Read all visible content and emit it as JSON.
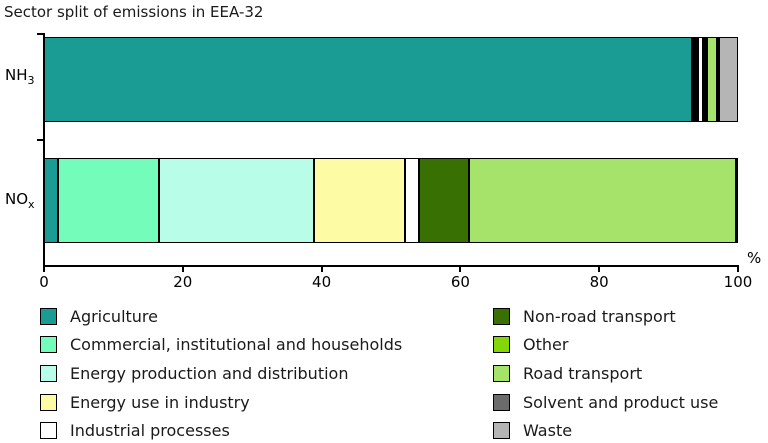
{
  "title": "Sector split of emissions in EEA-32",
  "axis": {
    "unit_label": "%",
    "xticks": [
      0,
      20,
      40,
      60,
      80,
      100
    ]
  },
  "category_labels": [
    {
      "base": "NH",
      "subscript": "3"
    },
    {
      "base": "NO",
      "subscript": "x"
    }
  ],
  "chart_data": {
    "type": "bar",
    "orientation": "horizontal",
    "stacked": true,
    "title": "Sector split of emissions in EEA-32",
    "categories": [
      "NH3",
      "NOx"
    ],
    "unit": "%",
    "xlabel": "%",
    "xlim": [
      0,
      100
    ],
    "grid": false,
    "legend_position": "bottom",
    "series": [
      {
        "id": "agriculture",
        "name": "Agriculture",
        "color": "#1a9b94",
        "values": [
          94.1,
          2.0
        ]
      },
      {
        "id": "commercial-institutional-households",
        "name": "Commercial, institutional and households",
        "color": "#73fcba",
        "values": [
          0.2,
          14.6
        ]
      },
      {
        "id": "energy-production-distribution",
        "name": "Energy production and distribution",
        "color": "#b7fde8",
        "values": [
          0.1,
          22.3
        ]
      },
      {
        "id": "energy-use-industry",
        "name": "Energy use in industry",
        "color": "#fdfba3",
        "values": [
          0.1,
          13.1
        ]
      },
      {
        "id": "industrial-processes",
        "name": "Industrial processes",
        "color": "#ffffff",
        "values": [
          0.7,
          2.0
        ]
      },
      {
        "id": "non-road-transport",
        "name": "Non-road transport",
        "color": "#387004",
        "values": [
          0.1,
          7.2
        ]
      },
      {
        "id": "other",
        "name": "Other",
        "color": "#85d608",
        "values": [
          0.2,
          0.0
        ]
      },
      {
        "id": "road-transport",
        "name": "Road transport",
        "color": "#a6e36b",
        "values": [
          1.4,
          38.5
        ]
      },
      {
        "id": "solvent-product-use",
        "name": "Solvent and product use",
        "color": "#6b6b6b",
        "values": [
          0.3,
          0.0
        ]
      },
      {
        "id": "waste",
        "name": "Waste",
        "color": "#b5b5b5",
        "values": [
          2.8,
          0.3
        ]
      }
    ]
  },
  "legend": {
    "columns": [
      [
        "agriculture",
        "commercial-institutional-households",
        "energy-production-distribution",
        "energy-use-industry",
        "industrial-processes"
      ],
      [
        "non-road-transport",
        "other",
        "road-transport",
        "solvent-product-use",
        "waste"
      ]
    ]
  }
}
